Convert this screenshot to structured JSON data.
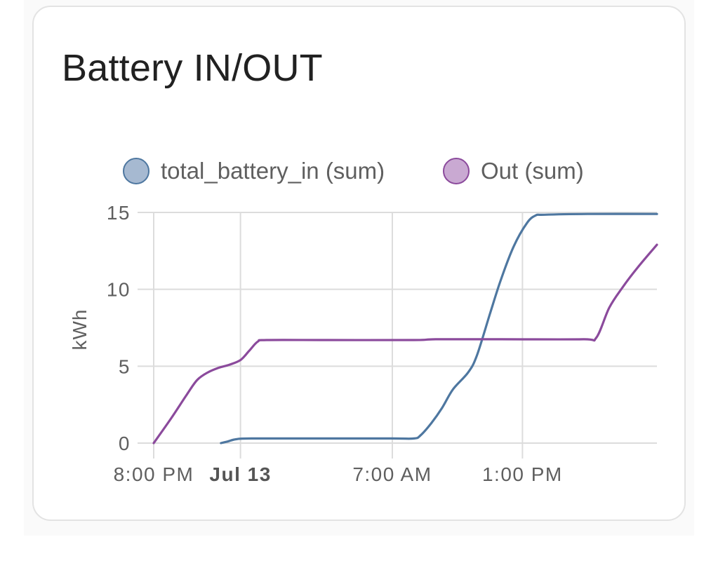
{
  "card": {
    "title": "Battery IN/OUT"
  },
  "chart_data": {
    "type": "line",
    "ylabel": "kWh",
    "ylim": [
      0,
      15
    ],
    "y_ticks": [
      "0",
      "5",
      "10",
      "15"
    ],
    "x_ticks": [
      {
        "label": "8:00 PM",
        "t": 0,
        "bold": false
      },
      {
        "label": "Jul 13",
        "t": 4,
        "bold": true
      },
      {
        "label": "7:00 AM",
        "t": 11,
        "bold": false
      },
      {
        "label": "1:00 PM",
        "t": 17,
        "bold": false
      }
    ],
    "x_unit": "hours since 8:00 PM",
    "xlim": [
      0,
      23.2
    ],
    "grid": true,
    "legend_position": "top-center",
    "series": [
      {
        "name": "total_battery_in (sum)",
        "color": "#4e77a0",
        "fill": "#a6b9d1",
        "points": [
          [
            3.1,
            0.0
          ],
          [
            3.4,
            0.1
          ],
          [
            3.8,
            0.25
          ],
          [
            4.5,
            0.3
          ],
          [
            8.0,
            0.3
          ],
          [
            11.0,
            0.3
          ],
          [
            12.0,
            0.3
          ],
          [
            12.3,
            0.5
          ],
          [
            12.8,
            1.3
          ],
          [
            13.3,
            2.3
          ],
          [
            13.8,
            3.5
          ],
          [
            14.5,
            4.6
          ],
          [
            14.9,
            5.7
          ],
          [
            15.5,
            8.4
          ],
          [
            16.0,
            10.6
          ],
          [
            16.6,
            12.8
          ],
          [
            17.2,
            14.3
          ],
          [
            17.6,
            14.8
          ],
          [
            18.0,
            14.85
          ],
          [
            20.0,
            14.9
          ],
          [
            23.2,
            14.9
          ]
        ]
      },
      {
        "name": "Out (sum)",
        "color": "#8b4a9c",
        "fill": "#c9a9d2",
        "points": [
          [
            0.0,
            0.0
          ],
          [
            0.8,
            1.6
          ],
          [
            1.5,
            3.1
          ],
          [
            2.0,
            4.1
          ],
          [
            2.5,
            4.6
          ],
          [
            3.0,
            4.9
          ],
          [
            3.5,
            5.1
          ],
          [
            4.0,
            5.4
          ],
          [
            4.4,
            6.0
          ],
          [
            4.8,
            6.6
          ],
          [
            5.2,
            6.7
          ],
          [
            8.0,
            6.7
          ],
          [
            12.0,
            6.7
          ],
          [
            13.0,
            6.75
          ],
          [
            16.0,
            6.75
          ],
          [
            19.8,
            6.75
          ],
          [
            20.4,
            6.85
          ],
          [
            21.0,
            8.8
          ],
          [
            21.6,
            10.1
          ],
          [
            22.3,
            11.4
          ],
          [
            23.2,
            12.9
          ]
        ]
      }
    ]
  }
}
